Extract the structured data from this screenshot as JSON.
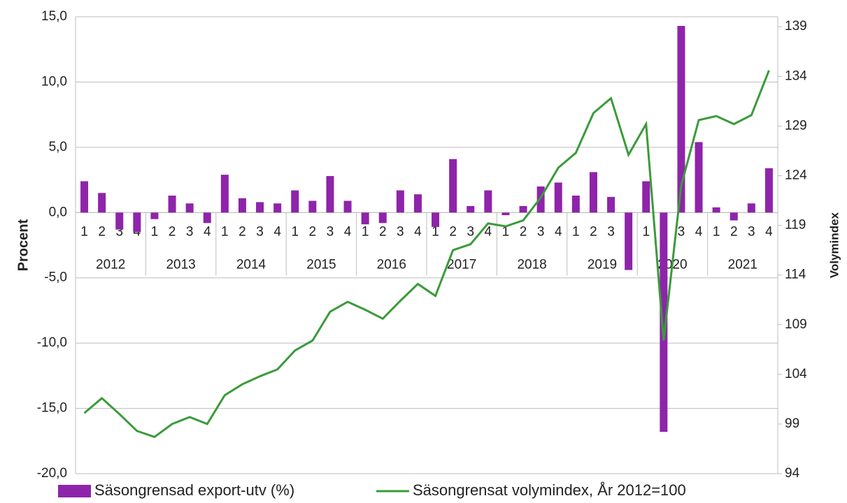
{
  "chart_data": {
    "type": "bar-line",
    "categories": [
      "1",
      "2",
      "3",
      "4",
      "1",
      "2",
      "3",
      "4",
      "1",
      "2",
      "3",
      "4",
      "1",
      "2",
      "3",
      "4",
      "1",
      "2",
      "3",
      "4",
      "1",
      "2",
      "3",
      "4",
      "1",
      "2",
      "3",
      "4",
      "1",
      "2",
      "3",
      "4",
      "1",
      "2",
      "3",
      "4",
      "1",
      "2",
      "3",
      "4"
    ],
    "groups": [
      "2012",
      "2013",
      "2014",
      "2015",
      "2016",
      "2017",
      "2018",
      "2019",
      "2020",
      "2021"
    ],
    "series": [
      {
        "name": "Säsongrensad export-utv (%)",
        "color": "#8e24aa",
        "kind": "bar",
        "values": [
          2.4,
          1.5,
          -1.3,
          -1.5,
          -0.5,
          1.3,
          0.7,
          -0.8,
          2.9,
          1.1,
          0.8,
          0.7,
          1.7,
          0.9,
          2.8,
          0.9,
          -0.9,
          -0.8,
          1.7,
          1.4,
          -1.1,
          4.1,
          0.5,
          1.7,
          -0.2,
          0.5,
          2.0,
          2.3,
          1.3,
          3.1,
          1.2,
          -4.4,
          2.4,
          -16.8,
          14.3,
          5.4,
          0.4,
          -0.6,
          0.7,
          3.4
        ]
      },
      {
        "name": "Säsongrensat volymindex, År 2012=100",
        "color": "#3a9b3a",
        "kind": "line",
        "axis": "y2",
        "values": [
          100.1,
          101.6,
          100.0,
          98.3,
          97.7,
          99.0,
          99.7,
          99.0,
          101.9,
          103.0,
          103.8,
          104.5,
          106.4,
          107.4,
          110.3,
          111.3,
          110.5,
          109.6,
          111.4,
          113.1,
          111.9,
          116.5,
          117.1,
          119.2,
          118.9,
          119.5,
          121.8,
          124.8,
          126.3,
          130.3,
          131.8,
          126.1,
          129.2,
          107.4,
          123.0,
          129.6,
          130.0,
          129.2,
          130.1,
          134.6
        ]
      }
    ],
    "ylabel": "Procent",
    "y2label": "Volymindex",
    "ylim": [
      -20,
      15
    ],
    "yticks": [
      {
        "value": -20,
        "label": "-20,0"
      },
      {
        "value": -15,
        "label": "-15,0"
      },
      {
        "value": -10,
        "label": "-10,0"
      },
      {
        "value": -5,
        "label": "-5,0"
      },
      {
        "value": 0,
        "label": "0,0"
      },
      {
        "value": 5,
        "label": "5,0"
      },
      {
        "value": 10,
        "label": "10,0"
      },
      {
        "value": 15,
        "label": "15,0"
      }
    ],
    "y2lim": [
      94,
      140
    ],
    "y2ticks": [
      94,
      99,
      104,
      109,
      114,
      119,
      124,
      129,
      134,
      139
    ],
    "grid": true,
    "legend": "bottom"
  }
}
